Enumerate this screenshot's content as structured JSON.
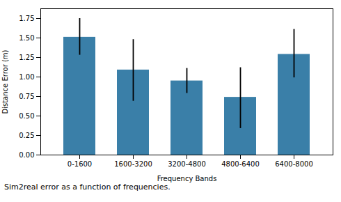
{
  "chart_data": {
    "type": "bar",
    "categories": [
      "0-1600",
      "1600-3200",
      "3200-4800",
      "4800-6400",
      "6400-8000"
    ],
    "values": [
      1.51,
      1.09,
      0.95,
      0.74,
      1.29
    ],
    "error_lower": [
      0.23,
      0.4,
      0.16,
      0.4,
      0.3
    ],
    "error_upper": [
      0.24,
      0.39,
      0.16,
      0.38,
      0.32
    ],
    "color": "#3a7fa8",
    "xlabel": "Frequency Bands",
    "ylabel": "Distance Error (m)",
    "ylim": [
      0.0,
      1.875
    ],
    "yticks": [
      {
        "value": 0.0,
        "label": "0.00"
      },
      0.25,
      {
        "value": 0.5,
        "label": "0.50"
      },
      0.75,
      {
        "value": 1.0,
        "label": "1.00"
      },
      1.25,
      {
        "value": 1.5,
        "label": "1.50"
      },
      1.75
    ],
    "caption": "Sim2real error as a function of frequencies."
  }
}
